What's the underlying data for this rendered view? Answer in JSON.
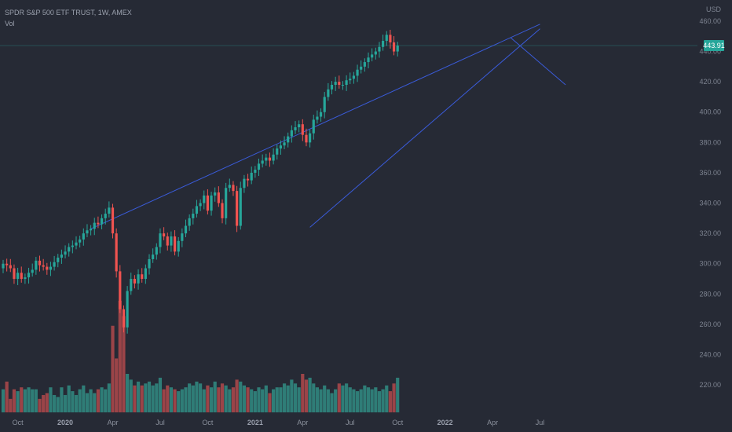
{
  "legend": {
    "symbol": "SPDR S&P 500 ETF TRUST, 1W, AMEX",
    "volume_label": "Vol"
  },
  "price_axis": {
    "currency": "USD",
    "ticks": [
      220,
      240,
      260,
      280,
      300,
      320,
      340,
      360,
      380,
      400,
      420,
      440,
      460
    ]
  },
  "last_price": {
    "label": "443.91",
    "value": 443.91
  },
  "time_axis": {
    "ticks": [
      {
        "label": "Oct",
        "bold": false,
        "week": 4
      },
      {
        "label": "2020",
        "bold": true,
        "week": 17
      },
      {
        "label": "Apr",
        "bold": false,
        "week": 30
      },
      {
        "label": "Jul",
        "bold": false,
        "week": 43
      },
      {
        "label": "Oct",
        "bold": false,
        "week": 56
      },
      {
        "label": "2021",
        "bold": true,
        "week": 69
      },
      {
        "label": "Apr",
        "bold": false,
        "week": 82
      },
      {
        "label": "Jul",
        "bold": false,
        "week": 95
      },
      {
        "label": "Oct",
        "bold": false,
        "week": 108
      },
      {
        "label": "2022",
        "bold": true,
        "week": 121
      },
      {
        "label": "Apr",
        "bold": false,
        "week": 134
      },
      {
        "label": "Jul",
        "bold": false,
        "week": 147
      }
    ]
  },
  "colors": {
    "background": "#262a35",
    "up": "#26a69a",
    "down": "#ef5350",
    "up_volume": "#2f7d77",
    "down_volume": "#9b4448",
    "trendline": "#3a5bd9",
    "price_line": "#26a69a"
  },
  "chart_data": {
    "type": "candlestick",
    "interval": "1W",
    "ylim": [
      205,
      468
    ],
    "grid": false,
    "legend_placement": "top-left",
    "close": [
      300,
      299,
      297,
      290,
      294,
      290,
      291,
      294,
      296,
      302,
      299,
      298,
      296,
      298,
      301,
      304,
      306,
      308,
      311,
      312,
      314,
      316,
      320,
      322,
      323,
      327,
      326,
      330,
      333,
      337,
      320,
      295,
      270,
      258,
      282,
      290,
      287,
      293,
      290,
      297,
      303,
      306,
      311,
      320,
      318,
      312,
      318,
      308,
      315,
      320,
      325,
      330,
      333,
      338,
      340,
      345,
      335,
      345,
      347,
      340,
      330,
      350,
      352,
      348,
      325,
      350,
      356,
      355,
      360,
      362,
      366,
      368,
      370,
      368,
      372,
      376,
      378,
      380,
      384,
      388,
      390,
      392,
      385,
      380,
      386,
      395,
      397,
      400,
      410,
      415,
      418,
      420,
      418,
      418,
      421,
      422,
      424,
      428,
      430,
      433,
      436,
      438,
      440,
      443,
      447,
      451,
      446,
      440,
      443.91
    ],
    "volume": [
      12,
      16,
      7,
      12,
      11,
      13,
      12,
      13,
      12,
      12,
      7,
      9,
      10,
      13,
      9,
      8,
      13,
      9,
      14,
      11,
      9,
      12,
      14,
      10,
      12,
      10,
      12,
      13,
      12,
      15,
      45,
      28,
      58,
      50,
      20,
      17,
      14,
      16,
      14,
      15,
      16,
      14,
      15,
      18,
      12,
      14,
      13,
      12,
      11,
      12,
      13,
      15,
      14,
      16,
      15,
      12,
      14,
      13,
      16,
      13,
      15,
      14,
      12,
      13,
      17,
      16,
      14,
      13,
      12,
      11,
      13,
      12,
      14,
      10,
      12,
      13,
      13,
      15,
      14,
      17,
      15,
      13,
      20,
      17,
      18,
      15,
      13,
      12,
      14,
      12,
      10,
      12,
      15,
      14,
      15,
      13,
      12,
      11,
      12,
      14,
      13,
      12,
      13,
      11,
      12,
      14,
      11,
      15,
      18
    ]
  },
  "annotations": [
    {
      "name": "upper-trendline",
      "from": {
        "week": 24,
        "price": 323
      },
      "to": {
        "week": 147,
        "price": 458
      }
    },
    {
      "name": "lower-trendline",
      "from": {
        "week": 84,
        "price": 324
      },
      "to": {
        "week": 147,
        "price": 455
      }
    },
    {
      "name": "projection-line",
      "from": {
        "week": 139,
        "price": 449
      },
      "to": {
        "week": 154,
        "price": 418
      }
    }
  ]
}
